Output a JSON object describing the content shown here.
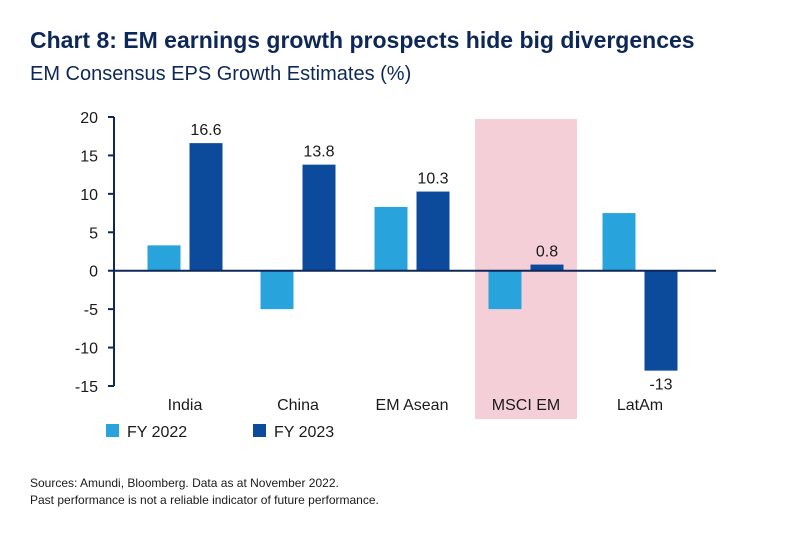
{
  "title": "Chart 8: EM earnings growth prospects hide big divergences",
  "subtitle": "EM Consensus EPS Growth Estimates (%)",
  "footer": {
    "line1": "Sources: Amundi, Bloomberg. Data as at November 2022.",
    "line2": "Past performance is not a reliable indicator of future performance."
  },
  "colors": {
    "fy2022": "#29a3dc",
    "fy2023": "#0c4a9c",
    "highlight": "#f5cfd8",
    "axis": "#0d2858"
  },
  "chart_data": {
    "type": "bar",
    "title": "EM Consensus EPS Growth Estimates (%)",
    "categories": [
      "India",
      "China",
      "EM Asean",
      "MSCI EM",
      "LatAm"
    ],
    "highlight_category": "MSCI EM",
    "series": [
      {
        "name": "FY 2022",
        "values": [
          3.3,
          -5,
          8.3,
          -5,
          7.5
        ]
      },
      {
        "name": "FY 2023",
        "values": [
          16.6,
          13.8,
          10.3,
          0.8,
          -13
        ]
      }
    ],
    "data_labels": [
      {
        "category": "India",
        "series": "FY 2023",
        "text": "16.6"
      },
      {
        "category": "China",
        "series": "FY 2023",
        "text": "13.8"
      },
      {
        "category": "EM Asean",
        "series": "FY 2023",
        "text": "10.3"
      },
      {
        "category": "MSCI EM",
        "series": "FY 2023",
        "text": "0.8"
      },
      {
        "category": "LatAm",
        "series": "FY 2023",
        "text": "-13"
      }
    ],
    "yticks": [
      20,
      15,
      10,
      5,
      0,
      -5,
      -10,
      -15
    ],
    "ylim": [
      -15,
      20
    ],
    "legend_position": "bottom-left",
    "grid": false
  }
}
